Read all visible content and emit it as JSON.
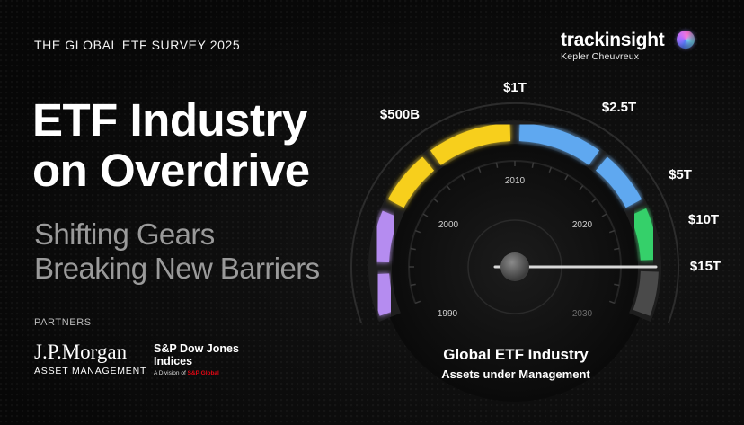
{
  "header": {
    "survey": "THE GLOBAL ETF SURVEY 2025",
    "title_line1": "ETF Industry",
    "title_line2": "on Overdrive",
    "subtitle_line1": "Shifting Gears",
    "subtitle_line2": "Breaking New Barriers"
  },
  "brand": {
    "name": "trackinsight",
    "sub": "Kepler Cheuvreux",
    "icon": "gradient-orb-icon"
  },
  "partners": {
    "label": "PARTNERS",
    "jpmorgan": {
      "name": "J.P.Morgan",
      "sub": "ASSET MANAGEMENT"
    },
    "spdj": {
      "line1": "S&P Dow Jones",
      "line2": "Indices",
      "line3_prefix": "A Division of ",
      "line3_brand": "S&P Global"
    }
  },
  "gauge": {
    "scale_labels": [
      "$500B",
      "$1T",
      "$2.5T",
      "$5T",
      "$10T",
      "$15T"
    ],
    "year_labels": [
      "1990",
      "2000",
      "2010",
      "2020",
      "2030"
    ],
    "caption_line1": "Global ETF Industry",
    "caption_line2": "Assets under Management",
    "colors": {
      "purple": "#b58cf0",
      "yellow": "#f7cf1d",
      "blue": "#5fa8f0",
      "green": "#35d06a",
      "grey": "#4a4a4a"
    }
  }
}
